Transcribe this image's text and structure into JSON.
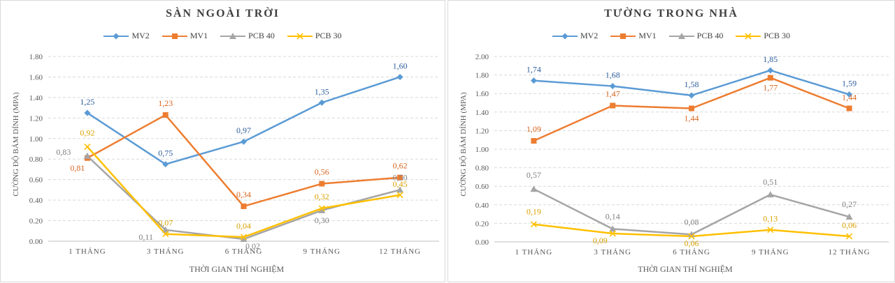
{
  "chart_data": [
    {
      "type": "line",
      "title": "SÀN NGOÀI TRỜI",
      "xlabel": "THỜI GIAN THÍ NGHIỆM",
      "ylabel": "CƯỜNG ĐỘ BÁM DÍNH (MPA)",
      "categories": [
        "1 THÁNG",
        "3 THÁNG",
        "6 THÁNG",
        "9 THÁNG",
        "12 THÁNG"
      ],
      "ylim": [
        0,
        1.8
      ],
      "yticks": [
        "0.00",
        "0.20",
        "0.40",
        "0.60",
        "0.80",
        "1.00",
        "1.20",
        "1.40",
        "1.60",
        "1.80"
      ],
      "grid": true,
      "legend": "top",
      "series": [
        {
          "name": "MV2",
          "color": "#5b9bd5",
          "marker": "diamond",
          "values": [
            1.25,
            0.75,
            0.97,
            1.35,
            1.6
          ],
          "labels": [
            "1,25",
            "0,75",
            "0,97",
            "1,35",
            "1,60"
          ]
        },
        {
          "name": "MV1",
          "color": "#ed7d31",
          "marker": "square",
          "values": [
            0.81,
            1.23,
            0.34,
            0.56,
            0.62
          ],
          "labels": [
            "0,81",
            "1,23",
            "0,34",
            "0,56",
            "0,62"
          ]
        },
        {
          "name": "PCB 40",
          "color": "#a5a5a5",
          "marker": "triangle",
          "values": [
            0.83,
            0.11,
            0.02,
            0.3,
            0.5
          ],
          "labels": [
            "0,83",
            "0,11",
            "0,02",
            "0,30",
            "0,50"
          ]
        },
        {
          "name": "PCB 30",
          "color": "#ffc000",
          "marker": "x",
          "values": [
            0.92,
            0.07,
            0.04,
            0.32,
            0.45
          ],
          "labels": [
            "0,92",
            "0,07",
            "0,04",
            "0,32",
            "0,45"
          ]
        }
      ]
    },
    {
      "type": "line",
      "title": "TƯỜNG TRONG NHÀ",
      "xlabel": "THỜI GIAN THÍ NGHIỆM",
      "ylabel": "CƯỜNG ĐỘ BÁM DÍNH (MPA)",
      "categories": [
        "1 THÁNG",
        "3 THÁNG",
        "6 THÁNG",
        "9 THÁNG",
        "12 THÁNG"
      ],
      "ylim": [
        0,
        2.0
      ],
      "yticks": [
        "0.00",
        "0.20",
        "0.40",
        "0.60",
        "0.80",
        "1.00",
        "1.20",
        "1.40",
        "1.60",
        "1.80",
        "2.00"
      ],
      "grid": true,
      "legend": "top",
      "series": [
        {
          "name": "MV2",
          "color": "#5b9bd5",
          "marker": "diamond",
          "values": [
            1.74,
            1.68,
            1.58,
            1.85,
            1.59
          ],
          "labels": [
            "1,74",
            "1,68",
            "1,58",
            "1,85",
            "1,59"
          ]
        },
        {
          "name": "MV1",
          "color": "#ed7d31",
          "marker": "square",
          "values": [
            1.09,
            1.47,
            1.44,
            1.77,
            1.44
          ],
          "labels": [
            "1,09",
            "1,47",
            "1,44",
            "1,77",
            "1,44"
          ]
        },
        {
          "name": "PCB 40",
          "color": "#a5a5a5",
          "marker": "triangle",
          "values": [
            0.57,
            0.14,
            0.08,
            0.51,
            0.27
          ],
          "labels": [
            "0,57",
            "0,14",
            "0,08",
            "0,51",
            "0,27"
          ]
        },
        {
          "name": "PCB 30",
          "color": "#ffc000",
          "marker": "x",
          "values": [
            0.19,
            0.09,
            0.06,
            0.13,
            0.06
          ],
          "labels": [
            "0,19",
            "0,09",
            "0,06",
            "0,13",
            "0,06"
          ]
        }
      ]
    }
  ]
}
